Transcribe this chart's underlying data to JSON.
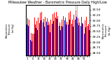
{
  "title": "Milwaukee Weather - Barometric Pressure Daily High/Low",
  "ylim": [
    28.4,
    30.7
  ],
  "yticks": [
    28.5,
    28.75,
    29.0,
    29.25,
    29.5,
    29.75,
    30.0,
    30.25,
    30.5
  ],
  "high_color": "#ff0000",
  "low_color": "#0000cc",
  "background_color": "#ffffff",
  "highs": [
    30.14,
    30.1,
    30.05,
    29.62,
    29.42,
    29.4,
    29.8,
    30.12,
    30.05,
    29.98,
    30.15,
    30.2,
    30.35,
    30.4,
    30.22,
    30.08,
    30.18,
    30.25,
    30.1,
    29.95,
    29.8,
    30.05,
    30.18,
    30.3,
    30.35,
    30.45,
    30.38,
    30.2,
    30.1,
    29.9,
    29.75,
    30.05,
    30.2,
    30.3,
    30.15,
    29.95,
    30.1,
    30.35,
    30.42,
    30.18,
    30.05,
    30.25,
    30.38,
    30.45,
    30.2,
    30.1,
    29.92,
    30.05,
    30.18,
    29.85,
    29.7,
    30.0,
    30.18,
    30.05,
    29.85
  ],
  "lows": [
    29.8,
    29.75,
    29.72,
    29.1,
    29.05,
    29.0,
    29.38,
    29.8,
    29.65,
    29.55,
    29.75,
    29.88,
    30.02,
    30.12,
    29.9,
    29.72,
    29.85,
    29.95,
    29.78,
    29.6,
    29.45,
    29.72,
    29.85,
    29.98,
    30.05,
    30.15,
    30.08,
    29.88,
    29.75,
    29.55,
    29.4,
    29.7,
    29.9,
    30.02,
    29.82,
    29.62,
    29.8,
    30.05,
    30.12,
    29.85,
    29.72,
    29.9,
    30.05,
    30.18,
    29.88,
    29.78,
    29.58,
    29.75,
    29.88,
    29.55,
    29.4,
    29.68,
    29.88,
    29.75,
    29.55
  ],
  "dotted_bar_index": 43,
  "n_bars": 55,
  "xlabel_labels": [
    "1",
    "",
    "",
    "",
    "",
    "6",
    "",
    "",
    "",
    "",
    "11",
    "",
    "",
    "",
    "",
    "16",
    "",
    "",
    "",
    "",
    "21",
    "",
    "",
    "",
    "",
    "26",
    "",
    "",
    "",
    "",
    "31",
    "",
    "",
    "",
    "",
    "36",
    "",
    "",
    "",
    "",
    "41",
    "",
    "",
    "",
    "",
    "46",
    "",
    "",
    "",
    "",
    "51",
    "",
    "",
    "",
    ""
  ],
  "left_label": "Barometric\nPressure\n(in.Hg)"
}
